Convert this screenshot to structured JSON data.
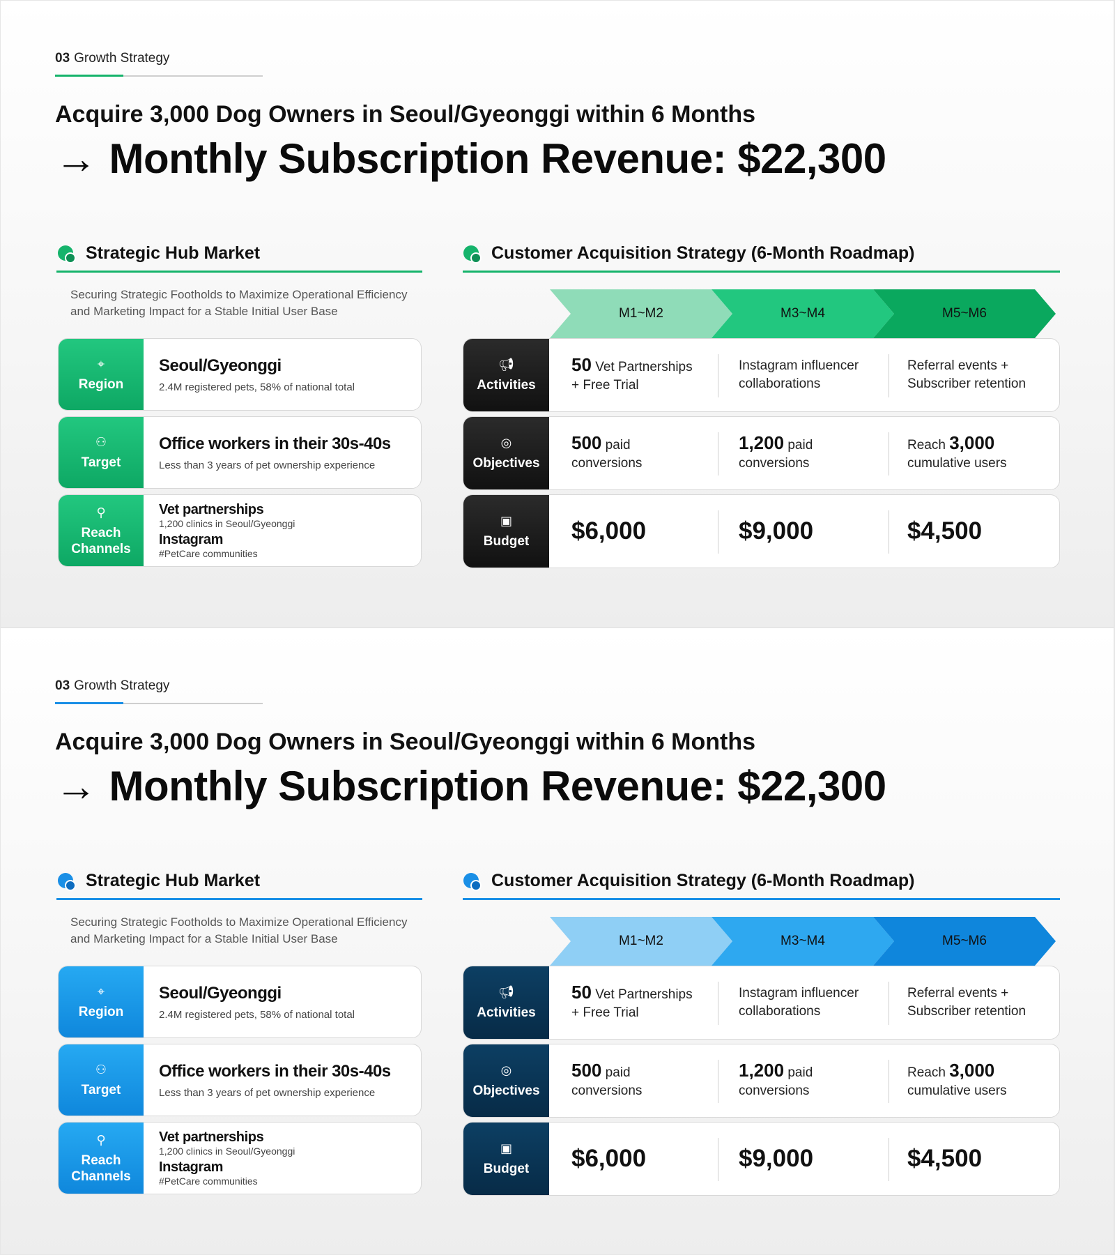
{
  "slides": [
    {
      "variant": "green",
      "section_number": "03",
      "section_title": "Growth Strategy",
      "headline": "Acquire 3,000 Dog Owners in Seoul/Gyeonggi within 6 Months",
      "big_arrow": "→",
      "big_title": "Monthly Subscription Revenue: $22,300",
      "left_header": "Strategic Hub Market",
      "left_subtitle": "Securing Strategic Footholds to Maximize Operational Efficiency and Marketing Impact for a Stable Initial User Base",
      "right_header": "Customer Acquisition Strategy (6-Month Roadmap)"
    },
    {
      "variant": "blue",
      "section_number": "03",
      "section_title": "Growth Strategy",
      "headline": "Acquire 3,000 Dog Owners in Seoul/Gyeonggi within 6 Months",
      "big_arrow": "→",
      "big_title": "Monthly Subscription Revenue: $22,300",
      "left_header": "Strategic Hub Market",
      "left_subtitle": "Securing Strategic Footholds to Maximize Operational Efficiency and Marketing Impact for a Stable Initial User Base",
      "right_header": "Customer Acquisition Strategy (6-Month Roadmap)"
    }
  ],
  "market": {
    "region": {
      "label": "Region",
      "icon": "map-pin-icon",
      "title": "Seoul/Gyeonggi",
      "sub": "2.4M registered pets, 58% of national total"
    },
    "target": {
      "label": "Target",
      "icon": "users-search-icon",
      "title": "Office workers in their 30s-40s",
      "sub": "Less than 3 years of pet ownership experience"
    },
    "channels": {
      "label_line1": "Reach",
      "label_line2": "Channels",
      "icon": "network-icon",
      "ch1_title": "Vet partnerships",
      "ch1_sub": "1,200 clinics in Seoul/Gyeonggi",
      "ch2_title": "Instagram",
      "ch2_sub": "#PetCare communities"
    }
  },
  "roadmap": {
    "phases": [
      "M1~M2",
      "M3~M4",
      "M5~M6"
    ],
    "activities": {
      "label": "Activities",
      "icon": "megaphone-icon",
      "c1_num": "50",
      "c1_text": "Vet Partnerships",
      "c1_line2": "+ Free Trial",
      "c2_line1": "Instagram influencer",
      "c2_line2": "collaborations",
      "c3_line1": "Referral events +",
      "c3_line2": "Subscriber retention"
    },
    "objectives": {
      "label": "Objectives",
      "icon": "target-cursor-icon",
      "c1_num": "500",
      "c1_unit": "paid",
      "c1_line2": "conversions",
      "c2_num": "1,200",
      "c2_unit": "paid",
      "c2_line2": "conversions",
      "c3_pre": "Reach",
      "c3_num": "3,000",
      "c3_line2": "cumulative users"
    },
    "budget": {
      "label": "Budget",
      "icon": "money-icon",
      "values": [
        "$6,000",
        "$9,000",
        "$4,500"
      ]
    }
  },
  "colors": {
    "green_accent": "#15b36b",
    "green_chevrons": [
      "#8fdcb8",
      "#22c77f",
      "#0aa85e"
    ],
    "dark_tile": "#1a1a1a",
    "blue_accent": "#1a8fe6",
    "blue_chevrons": [
      "#8fcff5",
      "#2ea8f0",
      "#0f86dc"
    ],
    "navy_tile": "#0b3656"
  }
}
